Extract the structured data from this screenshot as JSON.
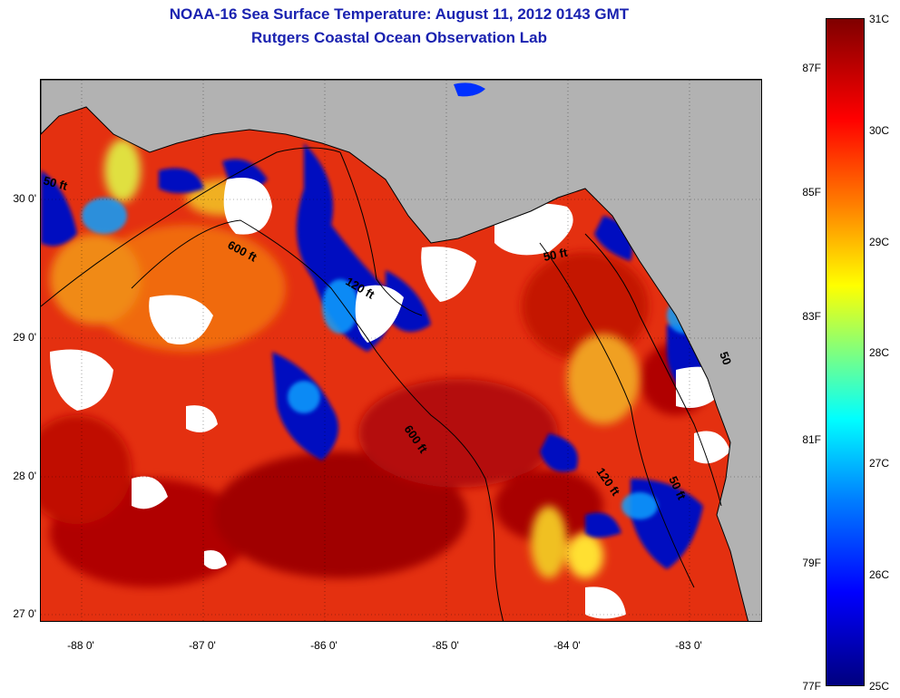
{
  "header": {
    "title_line1": "NOAA-16 Sea Surface Temperature:  August 11, 2012 0143 GMT",
    "title_line2": "Rutgers Coastal Ocean Observation Lab"
  },
  "map": {
    "latitude_labels": [
      "30 0'",
      "29 0'",
      "28 0'",
      "27 0'"
    ],
    "longitude_labels": [
      "-88 0'",
      "-87 0'",
      "-86 0'",
      "-85 0'",
      "-84 0'",
      "-83 0'"
    ],
    "contour_labels": [
      "50 ft",
      "600 ft",
      "120 ft",
      "50 ft",
      "600 ft",
      "120 ft",
      "50 ft",
      "50"
    ]
  },
  "colorbar": {
    "celsius_labels": [
      "31C",
      "30C",
      "29C",
      "28C",
      "27C",
      "26C",
      "25C"
    ],
    "fahrenheit_labels": [
      "87F",
      "85F",
      "83F",
      "81F",
      "79F",
      "77F"
    ]
  },
  "colors": {
    "title": "#1a22b0",
    "land": "#b2b2b2",
    "cloud": "#ffffff",
    "warm": "#e02000",
    "hot": "#a00000",
    "cool": "#0000c8"
  }
}
